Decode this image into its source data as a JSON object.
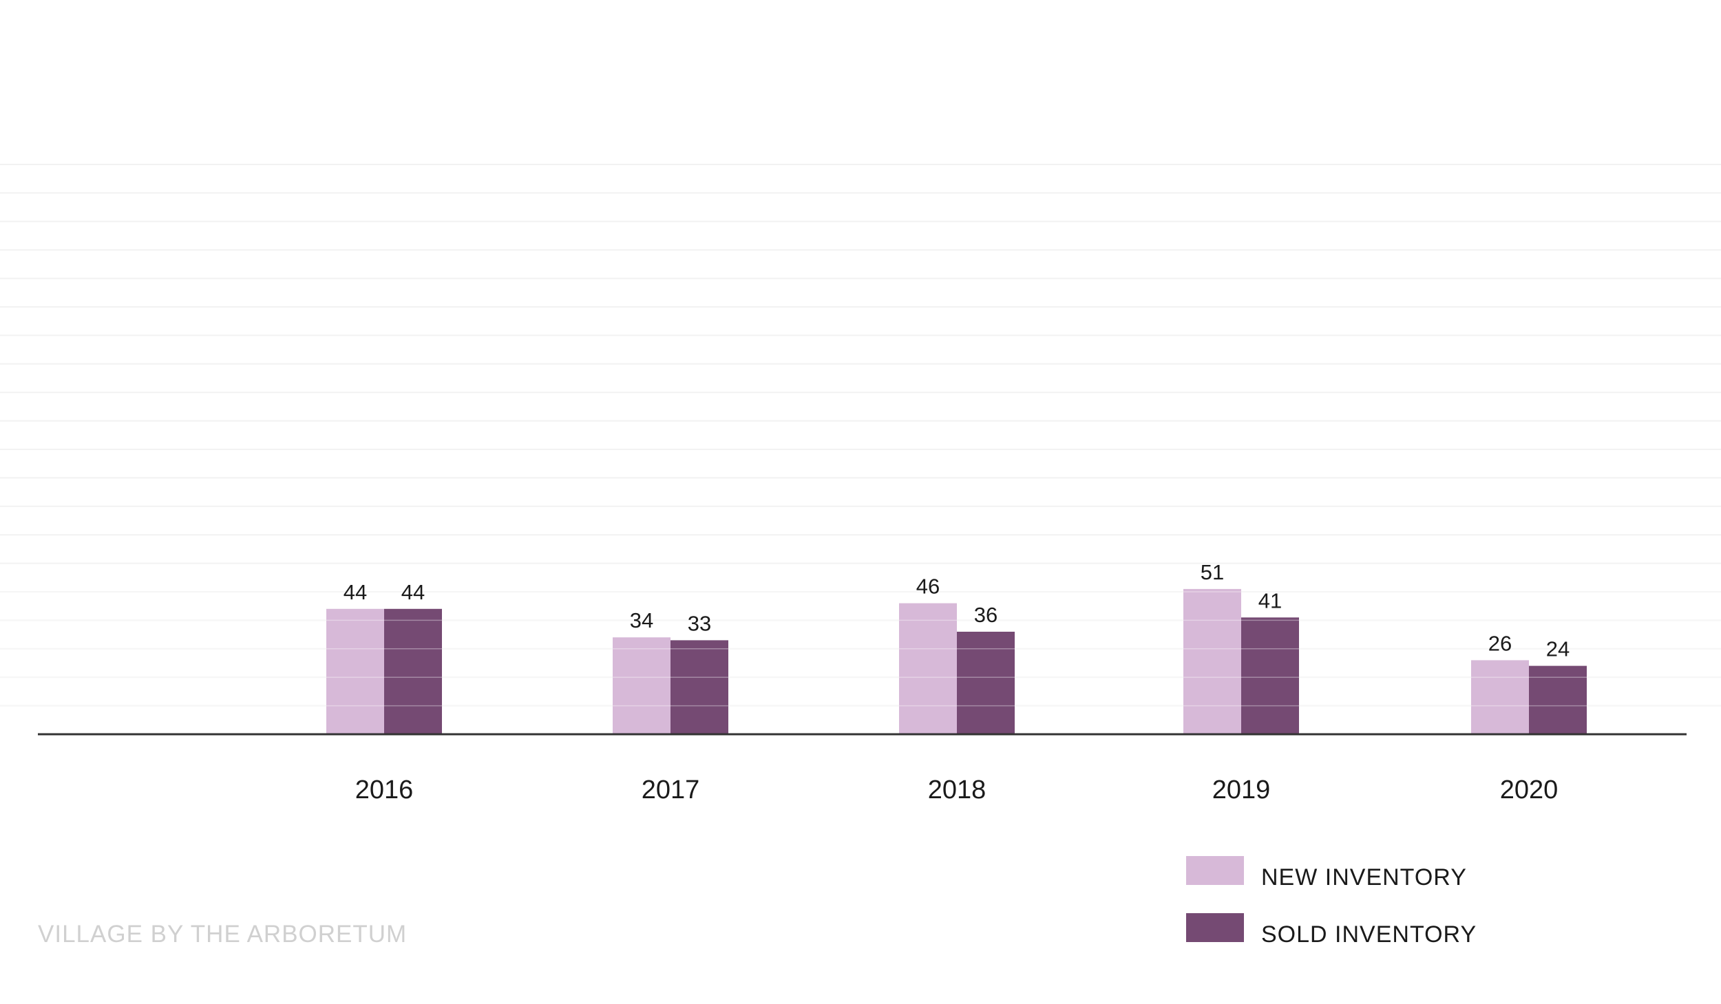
{
  "footer": {
    "caption": "VILLAGE BY THE ARBORETUM"
  },
  "colors": {
    "new_inventory": "#d7b9d8",
    "sold_inventory": "#754a73",
    "axis": "#333333",
    "gridline": "#f2f2f2",
    "footer": "#d0d0d0"
  },
  "chart_data": {
    "type": "bar",
    "title": "",
    "xlabel": "",
    "ylabel": "",
    "categories": [
      "2016",
      "2017",
      "2018",
      "2019",
      "2020"
    ],
    "series": [
      {
        "name": "NEW INVENTORY",
        "values": [
          44,
          34,
          46,
          51,
          26
        ]
      },
      {
        "name": "SOLD INVENTORY",
        "values": [
          44,
          33,
          36,
          41,
          24
        ]
      }
    ],
    "ylim": [
      0,
      200
    ],
    "grid": true,
    "legend_position": "bottom-right",
    "data_labels": true
  }
}
